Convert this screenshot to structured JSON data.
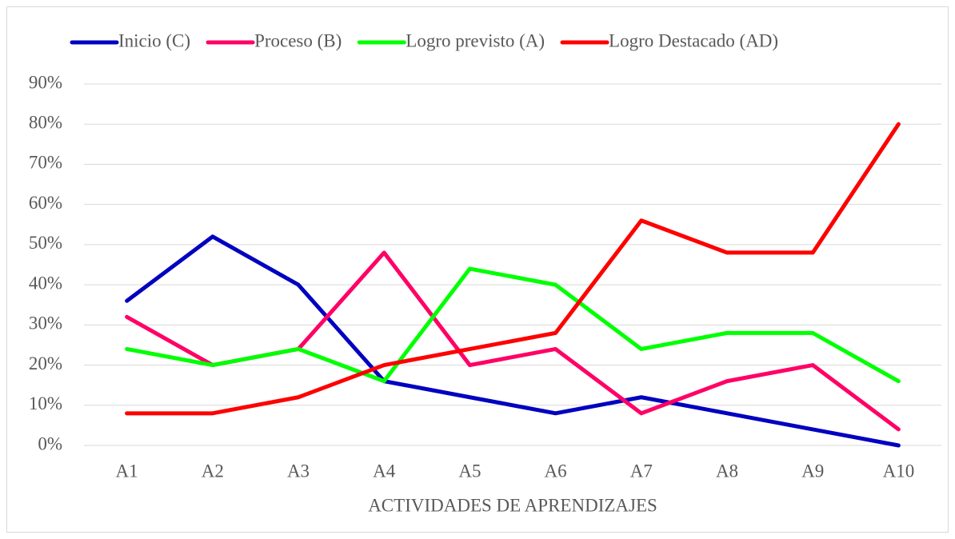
{
  "chart_data": {
    "type": "line",
    "x_label": "ACTIVIDADES DE APRENDIZAJES",
    "categories": [
      "A1",
      "A2",
      "A3",
      "A4",
      "A5",
      "A6",
      "A7",
      "A8",
      "A9",
      "A10"
    ],
    "series": [
      {
        "name": "Inicio (C)",
        "color": "#0000c0",
        "values": [
          36,
          52,
          40,
          16,
          12,
          8,
          12,
          8,
          4,
          0
        ]
      },
      {
        "name": "Proceso (B)",
        "color": "#ff0066",
        "values": [
          32,
          20,
          24,
          48,
          20,
          24,
          8,
          16,
          20,
          4
        ]
      },
      {
        "name": "Logro previsto (A)",
        "color": "#00ff00",
        "values": [
          24,
          20,
          24,
          16,
          44,
          40,
          24,
          28,
          28,
          16
        ]
      },
      {
        "name": "Logro Destacado (AD)",
        "color": "#ff0000",
        "values": [
          8,
          8,
          12,
          20,
          24,
          28,
          56,
          48,
          48,
          80
        ]
      }
    ],
    "ylim": [
      0,
      90
    ],
    "yticks": [
      {
        "value": 0,
        "label": "0%"
      },
      {
        "value": 10,
        "label": "10%"
      },
      {
        "value": 20,
        "label": "20%"
      },
      {
        "value": 30,
        "label": "30%"
      },
      {
        "value": 40,
        "label": "40%"
      },
      {
        "value": 50,
        "label": "50%"
      },
      {
        "value": 60,
        "label": "60%"
      },
      {
        "value": 70,
        "label": "70%"
      },
      {
        "value": 80,
        "label": "80%"
      },
      {
        "value": 90,
        "label": "90%"
      }
    ],
    "grid": true,
    "legend": "top"
  }
}
